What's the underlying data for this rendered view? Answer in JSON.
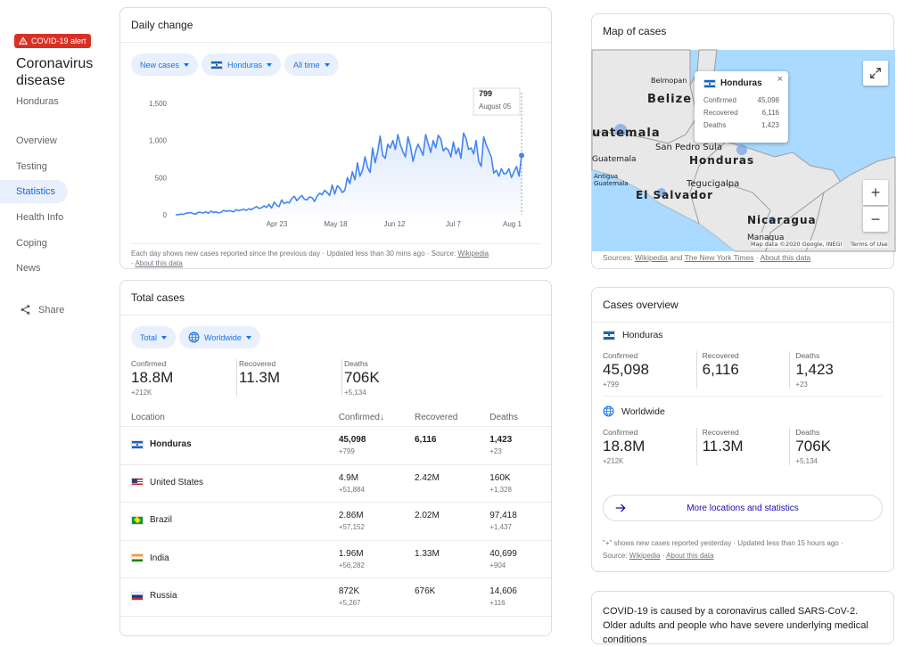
{
  "sidebar": {
    "alert_badge": "COVID-19 alert",
    "title": "Coronavirus disease",
    "location": "Honduras",
    "items": [
      {
        "label": "Overview",
        "active": false
      },
      {
        "label": "Testing",
        "active": false
      },
      {
        "label": "Statistics",
        "active": true
      },
      {
        "label": "Health Info",
        "active": false
      },
      {
        "label": "Coping",
        "active": false
      },
      {
        "label": "News",
        "active": false
      }
    ],
    "share_label": "Share"
  },
  "daily_change": {
    "title": "Daily change",
    "chips": {
      "metric": "New cases",
      "location": "Honduras",
      "range": "All time"
    },
    "footer_text": "Each day shows new cases reported since the previous day · Updated less than 30 mins ago  ·  Source: ",
    "footer_source": "Wikipedia",
    "footer_about": "About this data"
  },
  "chart_data": {
    "type": "line",
    "title": "",
    "xlabel": "",
    "ylabel": "",
    "ylim": [
      0,
      1500
    ],
    "y_ticks": [
      "0",
      "500",
      "1,000",
      "1,500"
    ],
    "x_ticks": [
      "Apr 23",
      "May 18",
      "Jun 12",
      "Jul 7",
      "Aug 1"
    ],
    "tooltip": {
      "value": "799",
      "date": "August 05"
    },
    "accent": "#4285f4",
    "x_start": "Mar 11",
    "x_end": "Aug 5",
    "values": [
      2,
      0,
      10,
      5,
      20,
      25,
      30,
      15,
      10,
      35,
      30,
      25,
      40,
      20,
      50,
      30,
      40,
      25,
      35,
      60,
      45,
      55,
      50,
      40,
      70,
      55,
      65,
      75,
      60,
      80,
      70,
      90,
      110,
      85,
      95,
      120,
      100,
      140,
      90,
      170,
      130,
      110,
      200,
      150,
      170,
      160,
      220,
      250,
      190,
      230,
      260,
      210,
      200,
      240,
      230,
      180,
      250,
      290,
      270,
      330,
      300,
      260,
      400,
      280,
      390,
      360,
      300,
      330,
      500,
      420,
      580,
      470,
      700,
      520,
      600,
      780,
      640,
      570,
      900,
      700,
      850,
      1060,
      800,
      760,
      950,
      900,
      1000,
      880,
      1080,
      940,
      850,
      780,
      1050,
      920,
      720,
      860,
      950,
      880,
      800,
      1080,
      960,
      840,
      1000,
      900,
      1070,
      1020,
      860,
      900,
      870,
      780,
      980,
      820,
      900,
      760,
      1100,
      1030,
      880,
      900,
      820,
      1000,
      720,
      650,
      1050,
      940,
      860,
      780,
      560,
      600,
      520,
      620,
      550,
      560,
      620,
      500,
      580,
      650,
      520,
      799
    ]
  },
  "total_cases": {
    "title": "Total cases",
    "chips": {
      "metric": "Total",
      "location": "Worldwide"
    },
    "stats": [
      {
        "label": "Confirmed",
        "value": "18.8M",
        "delta": "+212K"
      },
      {
        "label": "Recovered",
        "value": "11.3M",
        "delta": ""
      },
      {
        "label": "Deaths",
        "value": "706K",
        "delta": "+5,134"
      }
    ],
    "columns": {
      "location": "Location",
      "confirmed": "Confirmed",
      "recovered": "Recovered",
      "deaths": "Deaths",
      "sort_arrow": "↓"
    },
    "rows": [
      {
        "location": "Honduras",
        "flag": "hn",
        "confirmed": "45,098",
        "confirmed_delta": "+799",
        "recovered": "6,116",
        "deaths": "1,423",
        "deaths_delta": "+23"
      },
      {
        "location": "United States",
        "flag": "us",
        "confirmed": "4.9M",
        "confirmed_delta": "+51,884",
        "recovered": "2.42M",
        "deaths": "160K",
        "deaths_delta": "+1,328"
      },
      {
        "location": "Brazil",
        "flag": "br",
        "confirmed": "2.86M",
        "confirmed_delta": "+57,152",
        "recovered": "2.02M",
        "deaths": "97,418",
        "deaths_delta": "+1,437"
      },
      {
        "location": "India",
        "flag": "in",
        "confirmed": "1.96M",
        "confirmed_delta": "+56,282",
        "recovered": "1.33M",
        "deaths": "40,699",
        "deaths_delta": "+904"
      },
      {
        "location": "Russia",
        "flag": "ru",
        "confirmed": "872K",
        "confirmed_delta": "+5,267",
        "recovered": "676K",
        "deaths": "14,606",
        "deaths_delta": "+116"
      }
    ]
  },
  "map": {
    "title": "Map of cases",
    "labels": {
      "belmopan": "Belmopan",
      "belize": "Belize",
      "guatemala_country": "uatemala",
      "guatemala_city": "Guatemala",
      "antigua": "Antigua\nGuatemala",
      "san_pedro": "San Pedro Sula",
      "honduras": "Honduras",
      "tegucigalpa": "Tegucigalpa",
      "el_salvador": "El Salvador",
      "nicaragua": "Nicaragua",
      "managua": "Managua"
    },
    "attribution": "Map data ©2020 Google, INEGI",
    "terms": "Terms of Use",
    "popup": {
      "title": "Honduras",
      "rows": [
        {
          "label": "Confirmed",
          "value": "45,098"
        },
        {
          "label": "Recovered",
          "value": "6,116"
        },
        {
          "label": "Deaths",
          "value": "1,423"
        }
      ],
      "close": "×"
    },
    "zoom_in": "+",
    "zoom_out": "−",
    "footer_prefix": "Sources: ",
    "footer_src1": "Wikipedia",
    "footer_and": " and ",
    "footer_src2": "The New York Times",
    "footer_about": "About this data"
  },
  "overview": {
    "title": "Cases overview",
    "honduras": {
      "label": "Honduras",
      "stats": [
        {
          "label": "Confirmed",
          "value": "45,098",
          "delta": "+799"
        },
        {
          "label": "Recovered",
          "value": "6,116",
          "delta": ""
        },
        {
          "label": "Deaths",
          "value": "1,423",
          "delta": "+23"
        }
      ]
    },
    "worldwide": {
      "label": "Worldwide",
      "stats": [
        {
          "label": "Confirmed",
          "value": "18.8M",
          "delta": "+212K"
        },
        {
          "label": "Recovered",
          "value": "11.3M",
          "delta": ""
        },
        {
          "label": "Deaths",
          "value": "706K",
          "delta": "+5,134"
        }
      ]
    },
    "more_button": "More locations and statistics",
    "footer_line1": "\"+\" shows new cases reported yesterday · Updated less than 15 hours ago  ·",
    "footer_source_prefix": "Source: ",
    "footer_source": "Wikipedia",
    "footer_about": "About this data"
  },
  "info": {
    "text": "COVID-19 is caused by a coronavirus called SARS-CoV-2. Older adults and people who have severe underlying medical conditions"
  }
}
